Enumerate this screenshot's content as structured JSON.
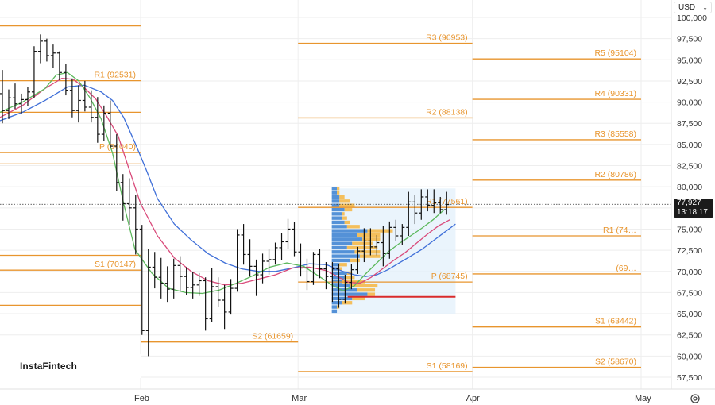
{
  "currency": "USD",
  "current_price": "77,927",
  "countdown": "13:18:17",
  "watermark": "InstaFintech",
  "chart_data": {
    "type": "candlestick",
    "y_axis": {
      "min": 55000,
      "max": 101000,
      "ticks": [
        57500,
        60000,
        62500,
        65000,
        67500,
        70000,
        72500,
        75000,
        77500,
        80000,
        82500,
        85000,
        87500,
        90000,
        92500,
        95000,
        97500,
        100000
      ]
    },
    "x_axis": {
      "range": [
        0,
        114
      ],
      "labels": [
        {
          "t": 25,
          "label": "Feb"
        },
        {
          "t": 53,
          "label": "Mar"
        },
        {
          "t": 84,
          "label": "Apr"
        },
        {
          "t": 114,
          "label": "May"
        }
      ]
    },
    "grid": true,
    "pivot_levels": [
      {
        "label": "",
        "value": 99000,
        "t0": 0,
        "t1": 25
      },
      {
        "label": "R1 (92531)",
        "value": 92531,
        "t0": 0,
        "t1": 25
      },
      {
        "label": "",
        "value": 88800,
        "t0": 0,
        "t1": 25
      },
      {
        "label": "P (84040)",
        "value": 84040,
        "t0": 0,
        "t1": 25
      },
      {
        "label": "",
        "value": 82700,
        "t0": 0,
        "t1": 25
      },
      {
        "label": "",
        "value": 71900,
        "t0": 0,
        "t1": 25
      },
      {
        "label": "S1 (70147)",
        "value": 70147,
        "t0": 0,
        "t1": 25
      },
      {
        "label": "",
        "value": 66000,
        "t0": 0,
        "t1": 25
      },
      {
        "label": "S2 (61659)",
        "value": 61659,
        "t0": 25,
        "t1": 53
      },
      {
        "label": "R3 (96953)",
        "value": 96953,
        "t0": 53,
        "t1": 84
      },
      {
        "label": "R2 (88138)",
        "value": 88138,
        "t0": 53,
        "t1": 84
      },
      {
        "label": "R1 (77561)",
        "value": 77561,
        "t0": 53,
        "t1": 84
      },
      {
        "label": "P (68745)",
        "value": 68745,
        "t0": 53,
        "t1": 84
      },
      {
        "label": "S1 (58169)",
        "value": 58169,
        "t0": 53,
        "t1": 84
      },
      {
        "label": "R5 (95104)",
        "value": 95104,
        "t0": 84,
        "t1": 114
      },
      {
        "label": "R4 (90331)",
        "value": 90331,
        "t0": 84,
        "t1": 114
      },
      {
        "label": "R3 (85558)",
        "value": 85558,
        "t0": 84,
        "t1": 114
      },
      {
        "label": "R2 (80786)",
        "value": 80786,
        "t0": 84,
        "t1": 114
      },
      {
        "label": "R1 (74…",
        "value": 74200,
        "t0": 84,
        "t1": 114
      },
      {
        "label": "(69…",
        "value": 69700,
        "t0": 84,
        "t1": 114
      },
      {
        "label": "S1 (63442)",
        "value": 63442,
        "t0": 84,
        "t1": 114
      },
      {
        "label": "S2 (58670)",
        "value": 58670,
        "t0": 84,
        "t1": 114
      }
    ],
    "ohlc": [
      [
        91000,
        93800,
        87500,
        89000
      ],
      [
        89000,
        91500,
        88000,
        90500
      ],
      [
        90500,
        92200,
        89200,
        89800
      ],
      [
        89800,
        91000,
        88600,
        90300
      ],
      [
        90300,
        91800,
        89500,
        91200
      ],
      [
        91200,
        96600,
        90500,
        96000
      ],
      [
        96000,
        98000,
        94600,
        97200
      ],
      [
        97200,
        97500,
        94800,
        95500
      ],
      [
        95500,
        96800,
        94000,
        95800
      ],
      [
        95800,
        96000,
        92600,
        93500
      ],
      [
        93500,
        94500,
        90800,
        91400
      ],
      [
        91400,
        92800,
        88200,
        89000
      ],
      [
        89000,
        92000,
        87600,
        90200
      ],
      [
        90200,
        92500,
        88900,
        89400
      ],
      [
        89400,
        91400,
        87600,
        88200
      ],
      [
        88200,
        90600,
        85200,
        86200
      ],
      [
        86200,
        89600,
        85400,
        88700
      ],
      [
        88700,
        90200,
        84600,
        84800
      ],
      [
        84800,
        86200,
        79500,
        80500
      ],
      [
        80500,
        81500,
        76000,
        78000
      ],
      [
        78000,
        81000,
        75500,
        77500
      ],
      [
        77500,
        79000,
        72000,
        75000
      ],
      [
        75000,
        75500,
        62500,
        63000
      ],
      [
        63000,
        72600,
        60000,
        70500
      ],
      [
        70500,
        72300,
        68000,
        69300
      ],
      [
        69300,
        71600,
        66800,
        68600
      ],
      [
        68600,
        70600,
        66400,
        67900
      ],
      [
        67900,
        71500,
        66800,
        70700
      ],
      [
        70700,
        71800,
        67700,
        69400
      ],
      [
        69400,
        70500,
        67200,
        68100
      ],
      [
        68100,
        69900,
        66800,
        68400
      ],
      [
        68400,
        69800,
        67100,
        68900
      ],
      [
        68900,
        69300,
        63000,
        64400
      ],
      [
        64400,
        70400,
        64000,
        68200
      ],
      [
        68200,
        69300,
        65800,
        66600
      ],
      [
        66600,
        68400,
        63200,
        65200
      ],
      [
        65200,
        69100,
        64900,
        68000
      ],
      [
        68000,
        75000,
        67600,
        74300
      ],
      [
        74300,
        75600,
        70800,
        72000
      ],
      [
        72000,
        73800,
        69400,
        70600
      ],
      [
        70600,
        71400,
        67100,
        69600
      ],
      [
        69600,
        72100,
        68600,
        71200
      ],
      [
        71200,
        72600,
        69600,
        71400
      ],
      [
        71400,
        73400,
        70800,
        72800
      ],
      [
        72800,
        74500,
        71300,
        73500
      ],
      [
        73500,
        76200,
        72700,
        75000
      ],
      [
        75000,
        75800,
        71800,
        72300
      ],
      [
        72300,
        73300,
        69400,
        70400
      ],
      [
        70400,
        71500,
        67800,
        68800
      ],
      [
        68800,
        72300,
        68400,
        72000
      ],
      [
        72000,
        72700,
        69200,
        70300
      ],
      [
        70300,
        71100,
        67900,
        69400
      ],
      [
        69400,
        71100,
        66400,
        70300
      ],
      [
        70300,
        70900,
        65700,
        66700
      ],
      [
        66700,
        69600,
        66200,
        68700
      ],
      [
        68700,
        70900,
        67900,
        70200
      ],
      [
        70200,
        72900,
        69700,
        72400
      ],
      [
        72400,
        75100,
        71100,
        73600
      ],
      [
        73600,
        75100,
        71900,
        72900
      ],
      [
        72900,
        74300,
        71900,
        73400
      ],
      [
        73400,
        75400,
        70600,
        72100
      ],
      [
        72100,
        75900,
        71500,
        75200
      ],
      [
        75200,
        76100,
        73600,
        74200
      ],
      [
        74200,
        75600,
        73100,
        75200
      ],
      [
        75200,
        79400,
        74200,
        78200
      ],
      [
        78200,
        79000,
        75600,
        76900
      ],
      [
        76900,
        79700,
        76100,
        78800
      ],
      [
        78800,
        79700,
        77100,
        77800
      ],
      [
        77800,
        79700,
        76900,
        78100
      ],
      [
        78100,
        78800,
        76900,
        77300
      ],
      [
        77300,
        79400,
        76700,
        77900
      ]
    ],
    "ma_green": [
      [
        0,
        88800
      ],
      [
        4,
        90000
      ],
      [
        8,
        91600
      ],
      [
        10,
        93200
      ],
      [
        12,
        93500
      ],
      [
        14,
        92500
      ],
      [
        16,
        90500
      ],
      [
        18,
        88000
      ],
      [
        20,
        84000
      ],
      [
        22,
        78000
      ],
      [
        24,
        72600
      ],
      [
        27,
        69800
      ],
      [
        30,
        68000
      ],
      [
        33,
        67500
      ],
      [
        36,
        67400
      ],
      [
        39,
        67800
      ],
      [
        42,
        68600
      ],
      [
        45,
        69500
      ],
      [
        48,
        70500
      ],
      [
        51,
        71000
      ],
      [
        54,
        70600
      ],
      [
        57,
        69300
      ],
      [
        59,
        68400
      ],
      [
        61,
        67700
      ],
      [
        63,
        68300
      ],
      [
        65,
        69700
      ],
      [
        67,
        71000
      ],
      [
        69,
        72300
      ],
      [
        71,
        73300
      ],
      [
        73,
        74200
      ],
      [
        75,
        75100
      ],
      [
        77,
        76100
      ],
      [
        79,
        77300
      ]
    ],
    "ma_red": [
      [
        0,
        88200
      ],
      [
        4,
        89600
      ],
      [
        8,
        91600
      ],
      [
        11,
        92800
      ],
      [
        13,
        92700
      ],
      [
        15,
        91700
      ],
      [
        17,
        90400
      ],
      [
        19,
        88300
      ],
      [
        21,
        86000
      ],
      [
        23,
        82000
      ],
      [
        25,
        78000
      ],
      [
        28,
        74200
      ],
      [
        31,
        71600
      ],
      [
        34,
        70000
      ],
      [
        37,
        68900
      ],
      [
        40,
        68400
      ],
      [
        43,
        68600
      ],
      [
        46,
        69100
      ],
      [
        49,
        69600
      ],
      [
        52,
        70400
      ],
      [
        55,
        70500
      ],
      [
        58,
        70100
      ],
      [
        60,
        69400
      ],
      [
        62,
        68700
      ],
      [
        64,
        68600
      ],
      [
        66,
        69300
      ],
      [
        68,
        70300
      ],
      [
        70,
        71300
      ],
      [
        72,
        72200
      ],
      [
        74,
        73300
      ],
      [
        76,
        74400
      ],
      [
        78,
        75400
      ],
      [
        80,
        76100
      ]
    ],
    "ma_blue": [
      [
        0,
        87800
      ],
      [
        4,
        88800
      ],
      [
        8,
        90200
      ],
      [
        12,
        91800
      ],
      [
        15,
        92000
      ],
      [
        18,
        91200
      ],
      [
        20,
        90200
      ],
      [
        22,
        88200
      ],
      [
        24,
        85200
      ],
      [
        26,
        82000
      ],
      [
        28,
        78600
      ],
      [
        31,
        75600
      ],
      [
        34,
        73700
      ],
      [
        37,
        72100
      ],
      [
        40,
        71000
      ],
      [
        43,
        70300
      ],
      [
        46,
        70000
      ],
      [
        49,
        70000
      ],
      [
        52,
        70400
      ],
      [
        55,
        70900
      ],
      [
        58,
        70800
      ],
      [
        61,
        70000
      ],
      [
        63,
        69600
      ],
      [
        65,
        69400
      ],
      [
        67,
        69600
      ],
      [
        69,
        70200
      ],
      [
        71,
        71000
      ],
      [
        73,
        71800
      ],
      [
        75,
        72600
      ],
      [
        77,
        73600
      ],
      [
        79,
        74600
      ],
      [
        81,
        75600
      ]
    ],
    "volume_profile": {
      "price_low": 65000,
      "price_high": 79800,
      "bucket": 500,
      "t0": 59,
      "t1": 81,
      "buckets": [
        [
          65000,
          2,
          0
        ],
        [
          65500,
          2,
          1
        ],
        [
          66000,
          4,
          4
        ],
        [
          66500,
          8,
          5
        ],
        [
          67000,
          14,
          3
        ],
        [
          67500,
          10,
          7
        ],
        [
          68000,
          7,
          11
        ],
        [
          68500,
          4,
          9
        ],
        [
          69000,
          5,
          4
        ],
        [
          69500,
          6,
          2
        ],
        [
          70000,
          3,
          1
        ],
        [
          70500,
          3,
          3
        ],
        [
          71000,
          7,
          4
        ],
        [
          71500,
          11,
          8
        ],
        [
          72000,
          9,
          10
        ],
        [
          72500,
          6,
          12
        ],
        [
          73000,
          8,
          8
        ],
        [
          73500,
          12,
          7
        ],
        [
          74000,
          10,
          9
        ],
        [
          74500,
          14,
          10
        ],
        [
          75000,
          6,
          5
        ],
        [
          75500,
          5,
          2
        ],
        [
          76000,
          4,
          2
        ],
        [
          76500,
          4,
          1
        ],
        [
          77000,
          5,
          3
        ],
        [
          77500,
          3,
          6
        ],
        [
          78000,
          3,
          4
        ],
        [
          78500,
          3,
          2
        ],
        [
          79000,
          2,
          1
        ],
        [
          79500,
          2,
          1
        ]
      ]
    },
    "poc_value": 67000,
    "last_price": 77927
  }
}
